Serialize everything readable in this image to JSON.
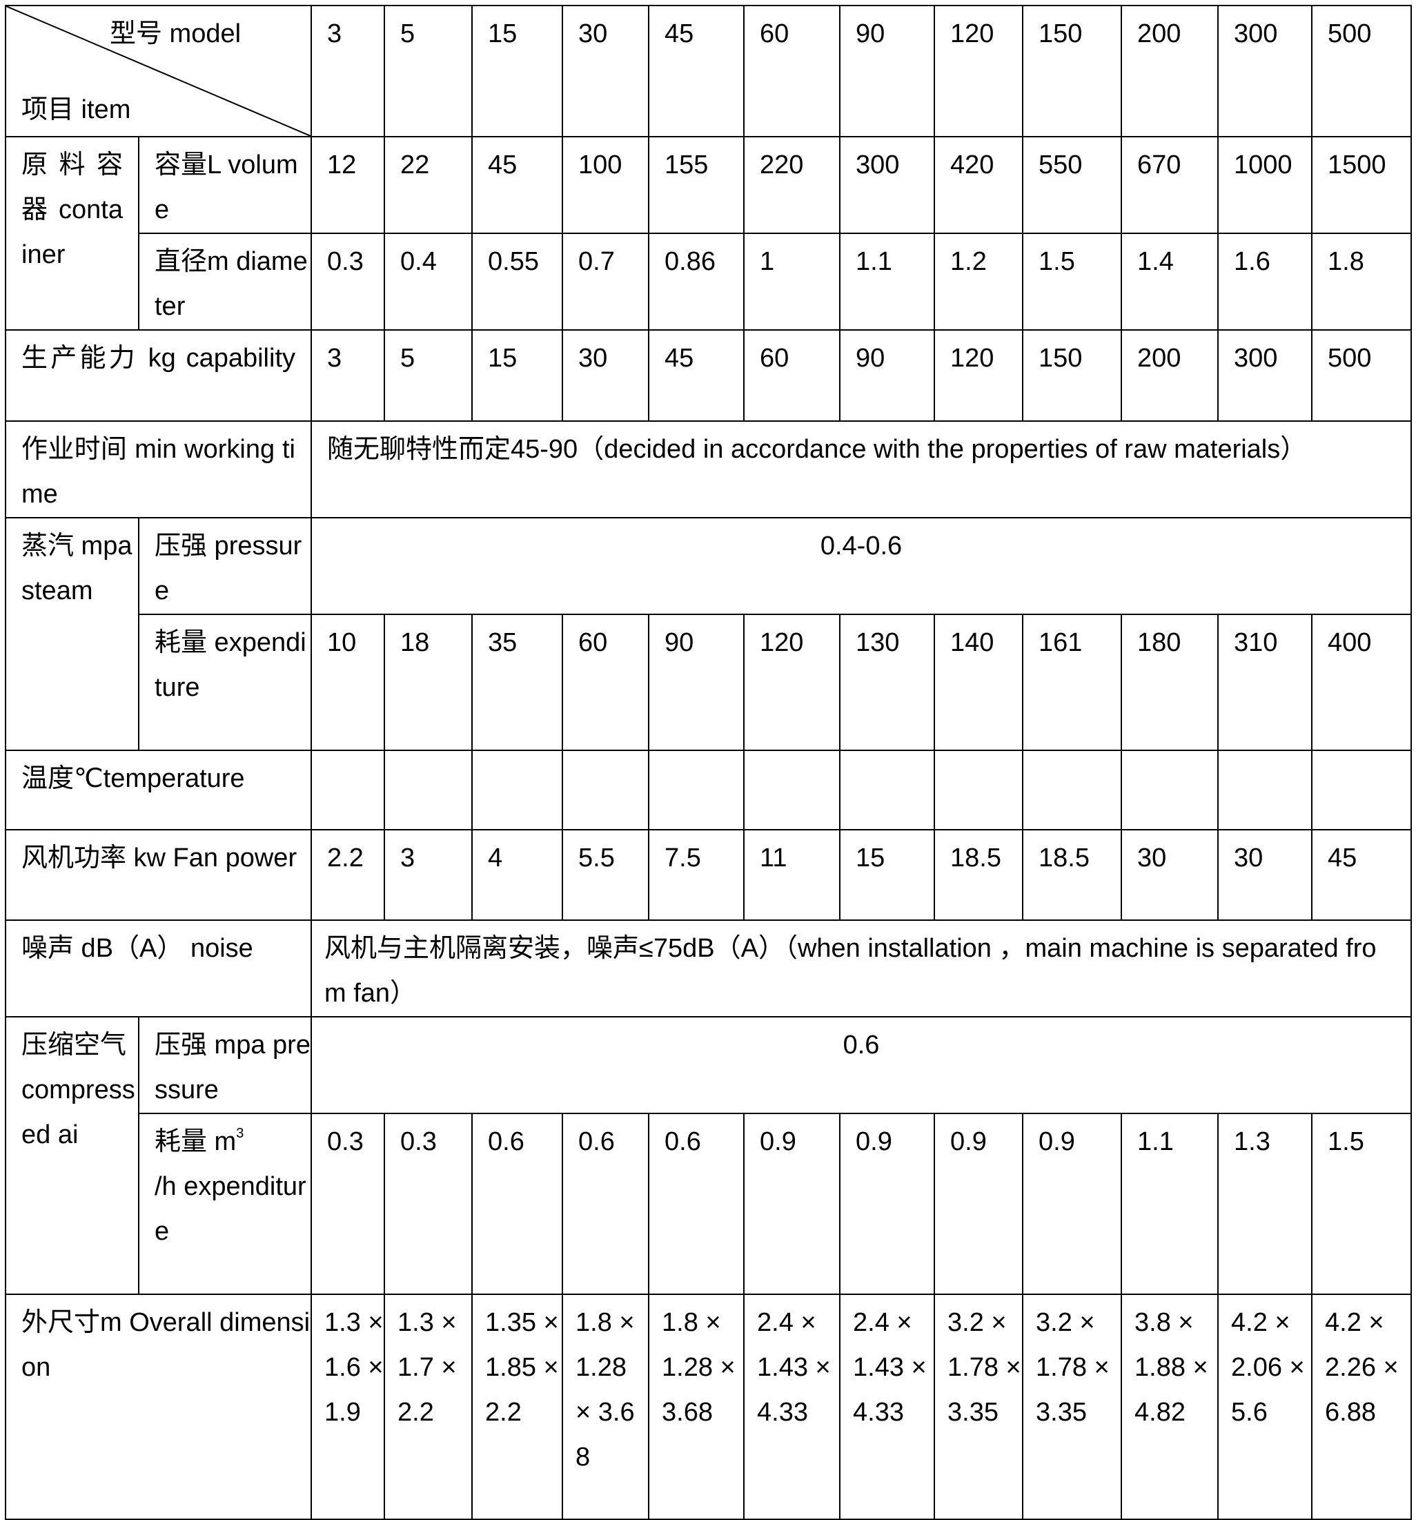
{
  "header": {
    "model_label": "型号 model",
    "item_label": "项目 item",
    "models": [
      "3",
      "5",
      "15",
      "30",
      "45",
      "60",
      "90",
      "120",
      "150",
      "200",
      "300",
      "500"
    ]
  },
  "container": {
    "label": "原料容器 container",
    "volume": {
      "label": "容量L volume",
      "values": [
        "12",
        "22",
        "45",
        "100",
        "155",
        "220",
        "300",
        "420",
        "550",
        "670",
        "1000",
        "1500"
      ]
    },
    "diameter": {
      "label": "直径m diameter",
      "values": [
        "0.3",
        "0.4",
        "0.55",
        "0.7",
        "0.86",
        "1",
        "1.1",
        "1.2",
        "1.5",
        "1.4",
        "1.6",
        "1.8"
      ]
    }
  },
  "capability": {
    "label": "生产能力 kg capability",
    "values": [
      "3",
      "5",
      "15",
      "30",
      "45",
      "60",
      "90",
      "120",
      "150",
      "200",
      "300",
      "500"
    ]
  },
  "working_time": {
    "label": "作业时间 min working time",
    "value": "随无聊特性而定45-90（decided in accordance with the properties of raw materials）"
  },
  "steam": {
    "label": "蒸汽 mpa steam",
    "pressure": {
      "label": "压强 pressure",
      "value": "0.4-0.6"
    },
    "expenditure": {
      "label": "耗量 expenditure",
      "values": [
        "10",
        "18",
        "35",
        "60",
        "90",
        "120",
        "130",
        "140",
        "161",
        "180",
        "310",
        "400"
      ]
    }
  },
  "temperature": {
    "label": "温度℃temperature"
  },
  "fan_power": {
    "label": "风机功率 kw Fan power",
    "values": [
      "2.2",
      "3",
      "4",
      "5.5",
      "7.5",
      "11",
      "15",
      "18.5",
      "18.5",
      "30",
      "30",
      "45"
    ]
  },
  "noise": {
    "label": "噪声 dB（A） noise",
    "value": "风机与主机隔离安装，噪声≤75dB（A）（when installation ，main machine is separated from fan）"
  },
  "compressed_air": {
    "label": "压缩空气 compressed ai",
    "pressure": {
      "label": "压强 mpa pressure",
      "value": "0.6"
    },
    "expenditure": {
      "label": "耗量 m",
      "unit_sup": "3",
      "label_rest": "/h expenditure",
      "values": [
        "0.3",
        "0.3",
        "0.6",
        "0.6",
        "0.6",
        "0.9",
        "0.9",
        "0.9",
        "0.9",
        "1.1",
        "1.3",
        "1.5"
      ]
    }
  },
  "dimension": {
    "label": "外尺寸m Overall dimension",
    "values": [
      "1.3 × 1.6 × 1.9",
      "1.3 × 1.7 × 2.2",
      "1.35 × 1.85 × 2.2",
      "1.8 × 1.28 × 3.68",
      "1.8 × 1.28 × 3.68",
      "2.4 × 1.43 × 4.33",
      "2.4 × 1.43 × 4.33",
      "3.2 × 1.78 × 3.35",
      "3.2 × 1.78 × 3.35",
      "3.8 × 1.88 × 4.82",
      "4.2 × 2.06 × 5.6",
      "4.2 × 2.26 × 6.88"
    ]
  }
}
